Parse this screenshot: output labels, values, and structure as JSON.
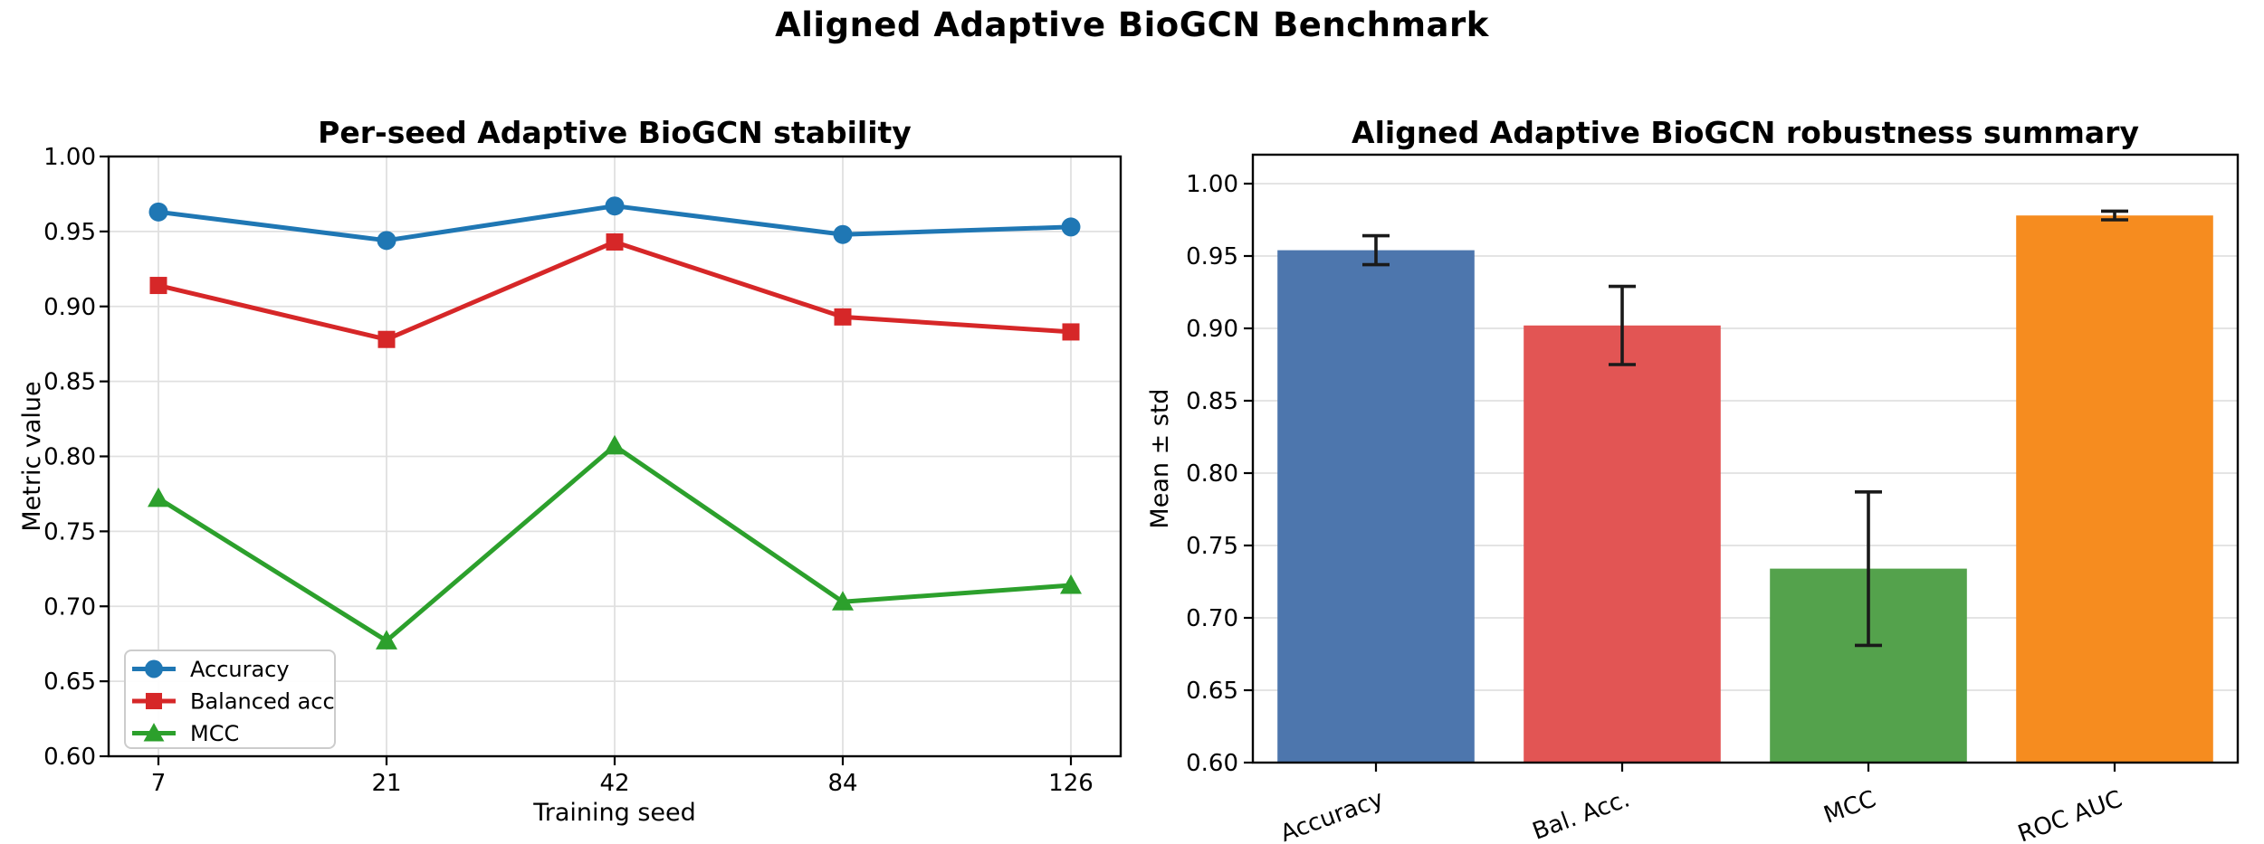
{
  "figure_title": "Aligned Adaptive BioGCN Benchmark",
  "colors": {
    "line_blue": "#1f77b4",
    "line_red": "#d62728",
    "line_green": "#2ca02c",
    "bar_blue": "#4d76ad",
    "bar_red": "#e25554",
    "bar_green": "#54a24c",
    "bar_orange": "#f68c1f",
    "grid": "#e0e0e0",
    "spine": "#000000",
    "errorbar": "#1a1a1a",
    "legend_border": "#cccccc"
  },
  "chart_data": [
    {
      "type": "line",
      "title": "Per-seed Adaptive BioGCN stability",
      "xlabel": "Training seed",
      "ylabel": "Metric value",
      "categories": [
        "7",
        "21",
        "42",
        "84",
        "126"
      ],
      "ylim": [
        0.6,
        1.0
      ],
      "yticks": [
        0.6,
        0.65,
        0.7,
        0.75,
        0.8,
        0.85,
        0.9,
        0.95,
        1.0
      ],
      "grid": "both",
      "legend_position": "lower left",
      "series": [
        {
          "name": "Accuracy",
          "color": "#1f77b4",
          "marker": "circle",
          "values": [
            0.963,
            0.944,
            0.967,
            0.948,
            0.953
          ]
        },
        {
          "name": "Balanced acc",
          "color": "#d62728",
          "marker": "square",
          "values": [
            0.914,
            0.878,
            0.943,
            0.893,
            0.883
          ]
        },
        {
          "name": "MCC",
          "color": "#2ca02c",
          "marker": "triangle",
          "values": [
            0.772,
            0.677,
            0.807,
            0.703,
            0.714
          ]
        }
      ]
    },
    {
      "type": "bar",
      "title": "Aligned Adaptive BioGCN robustness summary",
      "xlabel": "",
      "ylabel": "Mean ± std",
      "categories": [
        "Accuracy",
        "Bal. Acc.",
        "MCC",
        "ROC AUC"
      ],
      "values": [
        0.954,
        0.902,
        0.734,
        0.978
      ],
      "errors": [
        0.01,
        0.027,
        0.053,
        0.003
      ],
      "bar_colors": [
        "#4d76ad",
        "#e25554",
        "#54a24c",
        "#f68c1f"
      ],
      "ylim": [
        0.6,
        1.02
      ],
      "yticks": [
        0.6,
        0.65,
        0.7,
        0.75,
        0.8,
        0.85,
        0.9,
        0.95,
        1.0
      ],
      "grid": "y",
      "x_tick_rotation_deg": 20
    }
  ]
}
